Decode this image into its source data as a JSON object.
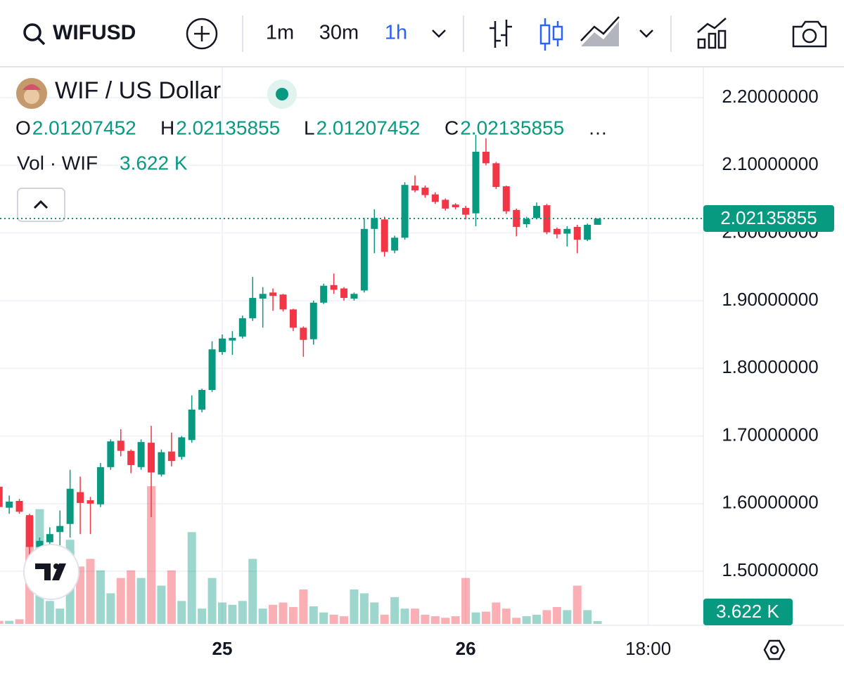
{
  "toolbar": {
    "symbol": "WIFUSD",
    "intervals": [
      "1m",
      "30m",
      "1h"
    ]
  },
  "chart_data": {
    "type": "candlestick",
    "title": "WIF / US Dollar",
    "ohlc_labels": [
      "O",
      "H",
      "L",
      "C"
    ],
    "more": "…",
    "volume_title": "Vol · WIF",
    "volume_label": "3.622 K",
    "x": [
      -22,
      -21,
      -20,
      -19,
      -18,
      -17,
      -16,
      -15,
      -14,
      -13,
      -12,
      -11,
      -10,
      -9,
      -8,
      -7,
      -6,
      -5,
      -4,
      -3,
      -2,
      -1,
      0,
      1,
      2,
      3,
      4,
      5,
      6,
      7,
      8,
      9,
      10,
      11,
      12,
      13,
      14,
      15,
      16,
      17,
      18,
      19,
      20,
      21,
      22,
      23,
      24,
      25,
      26,
      27,
      28,
      29,
      30,
      31,
      32,
      33,
      34,
      35,
      36,
      37
    ],
    "open": [
      1.625,
      1.594,
      1.604,
      1.583,
      1.536,
      1.543,
      1.558,
      1.57,
      1.617,
      1.605,
      1.599,
      1.654,
      1.693,
      1.678,
      1.654,
      1.69,
      1.643,
      1.677,
      1.669,
      1.694,
      1.739,
      1.768,
      1.824,
      1.841,
      1.847,
      1.874,
      1.903,
      1.912,
      1.909,
      1.887,
      1.86,
      1.843,
      1.897,
      1.923,
      1.918,
      1.903,
      1.915,
      2.006,
      2.02,
      1.974,
      1.993,
      2.07,
      2.067,
      2.057,
      2.049,
      2.042,
      2.037,
      2.029,
      2.12,
      2.103,
      2.069,
      2.034,
      2.013,
      2.022,
      2.041,
      2.006,
      1.999,
      2.009,
      1.99,
      2.01207452
    ],
    "high": [
      1.63,
      1.612,
      1.607,
      1.585,
      1.55,
      1.565,
      1.59,
      1.65,
      1.64,
      1.61,
      1.66,
      1.695,
      1.71,
      1.68,
      1.695,
      1.715,
      1.68,
      1.705,
      1.7,
      1.76,
      1.77,
      1.84,
      1.85,
      1.855,
      1.878,
      1.935,
      1.92,
      1.918,
      1.91,
      1.888,
      1.862,
      1.9,
      1.925,
      1.94,
      1.92,
      1.912,
      2.022,
      2.035,
      2.024,
      1.996,
      2.075,
      2.085,
      2.07,
      2.06,
      2.051,
      2.044,
      2.04,
      2.145,
      2.14,
      2.105,
      2.07,
      2.036,
      2.024,
      2.045,
      2.043,
      2.008,
      2.01,
      2.012,
      2.014,
      2.02135855
    ],
    "low": [
      1.59,
      1.585,
      1.585,
      1.52,
      1.53,
      1.54,
      1.53,
      1.55,
      1.555,
      1.555,
      1.595,
      1.65,
      1.67,
      1.645,
      1.65,
      1.58,
      1.64,
      1.655,
      1.665,
      1.69,
      1.735,
      1.765,
      1.82,
      1.82,
      1.844,
      1.87,
      1.86,
      1.885,
      1.884,
      1.855,
      1.817,
      1.835,
      1.895,
      1.91,
      1.9,
      1.9,
      1.912,
      1.97,
      1.965,
      1.97,
      1.99,
      2.06,
      2.052,
      2.043,
      2.033,
      2.035,
      2.02,
      2.01,
      2.1,
      2.065,
      2.028,
      1.995,
      2.008,
      2.02,
      1.998,
      1.992,
      1.98,
      1.97,
      1.988,
      2.01207452
    ],
    "close": [
      1.595,
      1.603,
      1.588,
      1.536,
      1.545,
      1.555,
      1.567,
      1.622,
      1.601,
      1.6,
      1.654,
      1.692,
      1.678,
      1.657,
      1.691,
      1.646,
      1.676,
      1.663,
      1.698,
      1.739,
      1.768,
      1.828,
      1.844,
      1.845,
      1.874,
      1.904,
      1.91,
      1.907,
      1.887,
      1.86,
      1.842,
      1.897,
      1.922,
      1.916,
      1.904,
      1.91,
      2.006,
      2.022,
      1.972,
      1.993,
      2.071,
      2.063,
      2.056,
      2.046,
      2.036,
      2.038,
      2.027,
      2.12,
      2.103,
      2.068,
      2.032,
      2.009,
      2.021,
      2.04,
      2.001,
      1.998,
      2.006,
      1.99,
      2.012,
      2.02135855
    ],
    "volume": [
      4,
      4,
      6,
      140,
      150,
      30,
      20,
      110,
      75,
      85,
      70,
      40,
      60,
      70,
      60,
      180,
      50,
      70,
      30,
      120,
      20,
      60,
      28,
      25,
      30,
      85,
      20,
      25,
      28,
      22,
      45,
      23,
      15,
      12,
      10,
      45,
      40,
      28,
      12,
      35,
      20,
      20,
      12,
      10,
      8,
      10,
      60,
      15,
      16,
      28,
      20,
      8,
      10,
      12,
      18,
      22,
      18,
      50,
      18,
      3.622
    ],
    "xlim": [
      -21.91,
      47.43
    ],
    "xticks": [
      {
        "value": 0,
        "label": "25"
      },
      {
        "value": 24,
        "label": "26"
      },
      {
        "value": 42,
        "label": "18:00"
      }
    ],
    "ylim": [
      1.4202,
      2.2446
    ],
    "yticks": [
      {
        "value": 1.5,
        "label": "1.50000000"
      },
      {
        "value": 1.6,
        "label": "1.60000000"
      },
      {
        "value": 1.7,
        "label": "1.70000000"
      },
      {
        "value": 1.8,
        "label": "1.80000000"
      },
      {
        "value": 1.9,
        "label": "1.90000000"
      },
      {
        "value": 2.0,
        "label": "2.00000000"
      },
      {
        "value": 2.1,
        "label": "2.10000000"
      },
      {
        "value": 2.2,
        "label": "2.20000000"
      }
    ],
    "vlim": [
      0,
      180
    ],
    "up_color": "#089981",
    "down_color": "#f23645",
    "grid": true
  }
}
